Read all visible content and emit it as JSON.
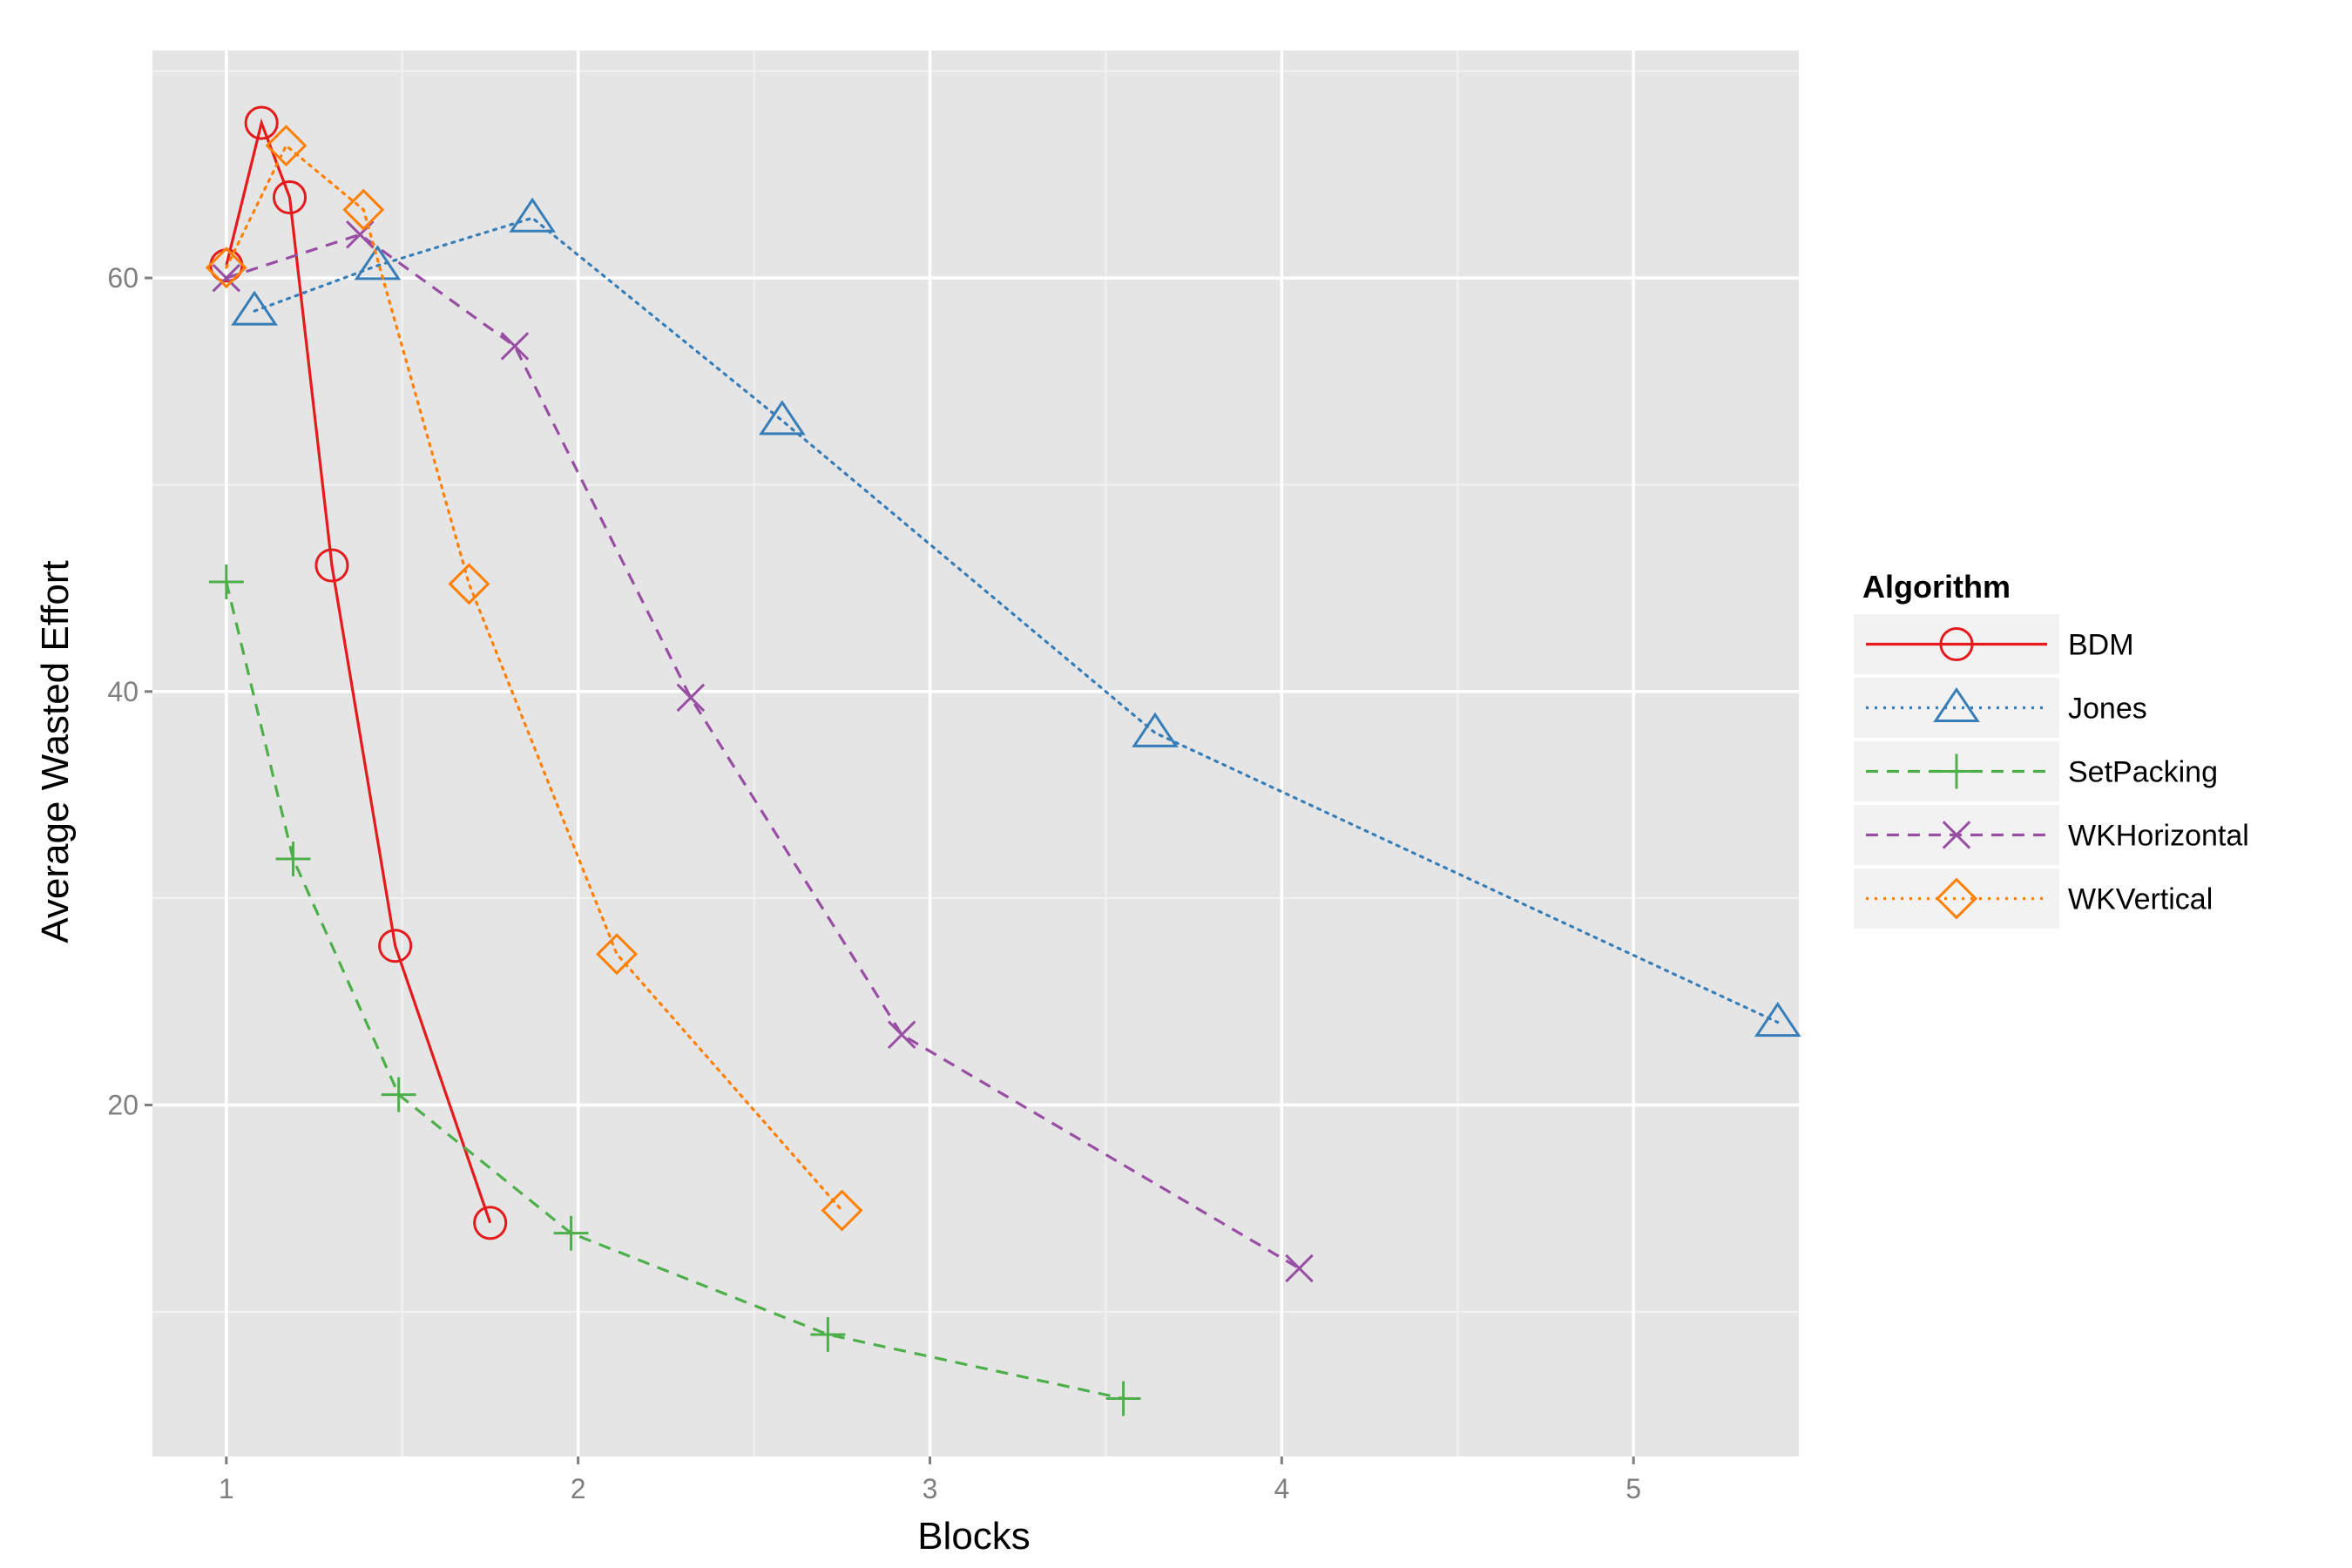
{
  "chart_data": {
    "type": "line",
    "title": "",
    "xlabel": "Blocks",
    "ylabel": "Average Wasted Effort",
    "xlim": [
      0.79,
      5.47
    ],
    "ylim": [
      3.0,
      71.0
    ],
    "xticks": [
      1,
      2,
      3,
      4,
      5
    ],
    "yticks": [
      20,
      40,
      60
    ],
    "grid": true,
    "legend": {
      "title": "Algorithm",
      "position": "right"
    },
    "series": [
      {
        "name": "BDM",
        "color": "#E41A1C",
        "linestyle": "solid",
        "marker": "circle",
        "x": [
          1.0,
          1.1,
          1.18,
          1.3,
          1.48,
          1.75
        ],
        "y": [
          60.6,
          67.5,
          63.9,
          46.1,
          27.7,
          14.3
        ]
      },
      {
        "name": "Jones",
        "color": "#377EB8",
        "linestyle": "dotted",
        "marker": "triangle",
        "x": [
          1.08,
          1.43,
          1.87,
          2.58,
          3.64,
          5.41
        ],
        "y": [
          58.4,
          60.6,
          62.9,
          53.1,
          38.0,
          24.0
        ]
      },
      {
        "name": "SetPacking",
        "color": "#4DAF4A",
        "linestyle": "dashed",
        "marker": "plus",
        "x": [
          1.0,
          1.19,
          1.49,
          1.98,
          2.71,
          3.55
        ],
        "y": [
          45.3,
          31.9,
          20.5,
          13.8,
          8.9,
          5.8
        ]
      },
      {
        "name": "WKHorizontal",
        "color": "#984EA3",
        "linestyle": "dashed",
        "marker": "x",
        "x": [
          1.0,
          1.38,
          1.82,
          2.32,
          2.92,
          4.05
        ],
        "y": [
          60.0,
          62.1,
          56.7,
          39.7,
          23.4,
          12.1
        ]
      },
      {
        "name": "WKVertical",
        "color": "#FF7F00",
        "linestyle": "dotted",
        "marker": "diamond",
        "x": [
          1.0,
          1.17,
          1.39,
          1.69,
          2.11,
          2.75
        ],
        "y": [
          60.5,
          66.4,
          63.3,
          45.2,
          27.3,
          14.9
        ]
      }
    ]
  }
}
